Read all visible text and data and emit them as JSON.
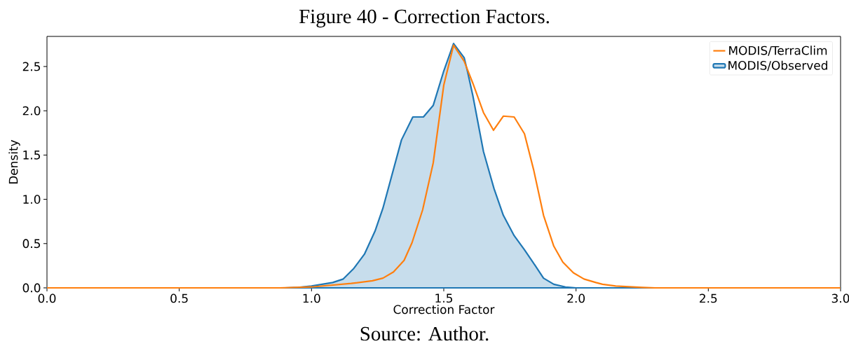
{
  "chart_data": {
    "type": "line",
    "title": "Figure 40 - Correction Factors.",
    "xlabel": "Correction Factor",
    "ylabel": "Density",
    "annotations": [
      "Source: Author."
    ],
    "xlim": [
      0,
      3.0
    ],
    "ylim": [
      0,
      2.84
    ],
    "xticks": [
      {
        "value": 0,
        "label": "0.0"
      },
      {
        "value": 0.5,
        "label": "0.5"
      },
      {
        "value": 1.0,
        "label": "1.0"
      },
      {
        "value": 1.5,
        "label": "1.5"
      },
      {
        "value": 2.0,
        "label": "2.0"
      },
      {
        "value": 2.5,
        "label": "2.5"
      },
      {
        "value": 3.0,
        "label": "3.0"
      }
    ],
    "yticks": [
      {
        "value": 0,
        "label": "0.0"
      },
      {
        "value": 0.5,
        "label": "0.5"
      },
      {
        "value": 1.0,
        "label": "1.0"
      },
      {
        "value": 1.5,
        "label": "1.5"
      },
      {
        "value": 2.0,
        "label": "2.0"
      },
      {
        "value": 2.5,
        "label": "2.5"
      }
    ],
    "legend": "top right",
    "grid": false,
    "series": [
      {
        "name": "MODIS/Observed",
        "type": "area",
        "color": "#1f77b4",
        "x": [
          0,
          0.5,
          0.9,
          0.95,
          1.0,
          1.08,
          1.12,
          1.16,
          1.2,
          1.24,
          1.27,
          1.34,
          1.383,
          1.423,
          1.46,
          1.5,
          1.537,
          1.577,
          1.59,
          1.61,
          1.65,
          1.69,
          1.725,
          1.766,
          1.805,
          1.837,
          1.877,
          1.916,
          1.96,
          2.0,
          2.5,
          3.0
        ],
        "values": [
          0,
          0,
          0,
          0.005,
          0.02,
          0.06,
          0.1,
          0.22,
          0.38,
          0.64,
          0.9,
          1.67,
          1.93,
          1.93,
          2.06,
          2.45,
          2.76,
          2.6,
          2.44,
          2.17,
          1.54,
          1.12,
          0.82,
          0.59,
          0.43,
          0.29,
          0.11,
          0.04,
          0.01,
          0,
          0,
          0
        ]
      },
      {
        "name": "MODIS/TerraClim",
        "color": "#ff7f0e",
        "x": [
          0,
          0.5,
          0.88,
          1.0,
          1.15,
          1.23,
          1.27,
          1.31,
          1.35,
          1.38,
          1.42,
          1.46,
          1.5,
          1.537,
          1.577,
          1.61,
          1.65,
          1.688,
          1.725,
          1.766,
          1.805,
          1.84,
          1.877,
          1.916,
          1.95,
          1.99,
          2.03,
          2.075,
          2.1,
          2.15,
          2.25,
          2.3,
          3.0
        ],
        "values": [
          0,
          0,
          0,
          0.01,
          0.05,
          0.08,
          0.11,
          0.18,
          0.31,
          0.51,
          0.88,
          1.41,
          2.29,
          2.74,
          2.56,
          2.31,
          1.98,
          1.78,
          1.94,
          1.93,
          1.74,
          1.33,
          0.82,
          0.47,
          0.29,
          0.17,
          0.1,
          0.06,
          0.04,
          0.02,
          0.005,
          0,
          0
        ]
      }
    ]
  }
}
